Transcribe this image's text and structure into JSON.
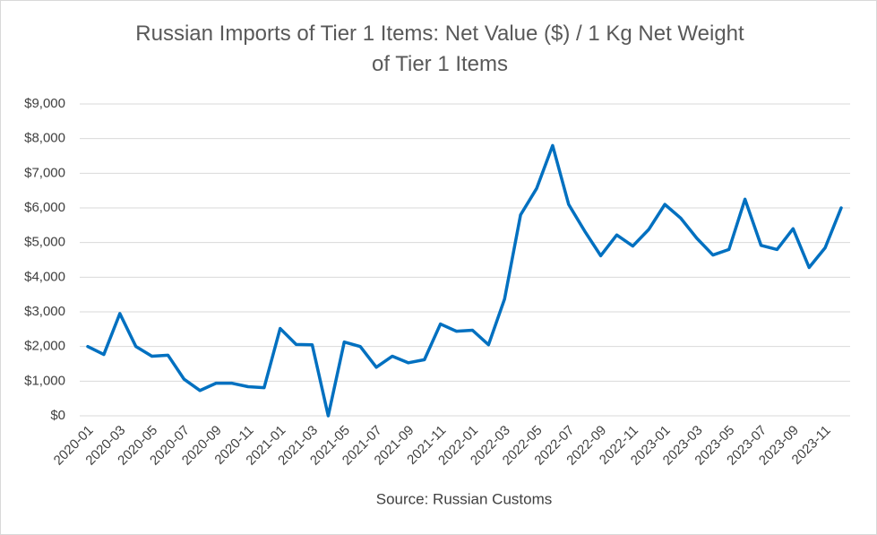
{
  "chart_data": {
    "type": "line",
    "title": "Russian Imports of Tier 1 Items: Net Value ($) / 1 Kg Net Weight of Tier 1 Items",
    "source": "Source: Russian Customs",
    "categories": [
      "2020-01",
      null,
      "2020-03",
      null,
      "2020-05",
      null,
      "2020-07",
      null,
      "2020-09",
      null,
      "2020-11",
      null,
      "2021-01",
      null,
      "2021-03",
      null,
      "2021-05",
      null,
      "2021-07",
      null,
      "2021-09",
      null,
      "2021-11",
      null,
      "2022-01",
      null,
      "2022-03",
      null,
      "2022-05",
      null,
      "2022-07",
      null,
      "2022-09",
      null,
      "2022-11",
      null,
      "2023-01",
      null,
      "2023-03",
      null,
      "2023-05",
      null,
      "2023-07",
      null,
      "2023-09",
      null,
      "2023-11",
      null
    ],
    "series": [
      {
        "color": "#0070c0",
        "values": [
          2000,
          1770,
          2950,
          2000,
          1720,
          1750,
          1060,
          730,
          940,
          940,
          840,
          810,
          2520,
          2060,
          2050,
          0,
          2130,
          2000,
          1400,
          1720,
          1530,
          1620,
          2650,
          2440,
          2470,
          2050,
          3370,
          5800,
          6560,
          7800,
          6100,
          5330,
          4620,
          5220,
          4900,
          5380,
          6100,
          5700,
          5120,
          4640,
          4800,
          6250,
          4920,
          4800,
          5400,
          4280,
          4850,
          6000
        ]
      }
    ],
    "ylim": [
      0,
      9000
    ],
    "yticks": [
      {
        "value": 0,
        "label": "$0"
      },
      {
        "value": 1000,
        "label": "$1,000"
      },
      {
        "value": 2000,
        "label": "$2,000"
      },
      {
        "value": 3000,
        "label": "$3,000"
      },
      {
        "value": 4000,
        "label": "$4,000"
      },
      {
        "value": 5000,
        "label": "$5,000"
      },
      {
        "value": 6000,
        "label": "$6,000"
      },
      {
        "value": 7000,
        "label": "$7,000"
      },
      {
        "value": 8000,
        "label": "$8,000"
      },
      {
        "value": 9000,
        "label": "$9,000"
      }
    ],
    "grid": true
  }
}
